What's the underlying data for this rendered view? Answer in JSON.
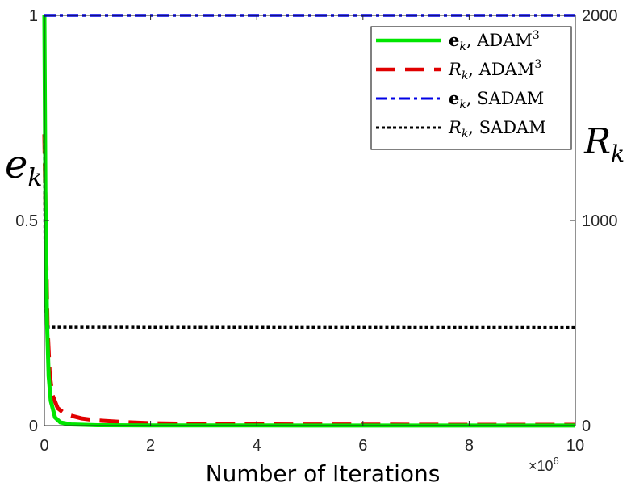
{
  "chart_data": {
    "type": "line",
    "xlabel": "Number of Iterations",
    "x_multiplier": "×10",
    "x_multiplier_exp": "6",
    "xlim": [
      0,
      10
    ],
    "x_ticks": [
      "0",
      "2",
      "4",
      "6",
      "8",
      "10"
    ],
    "ylabel_left": "e",
    "ylabel_left_sub": "k",
    "ylabel_right": "R",
    "ylabel_right_sub": "k",
    "ylim_left": [
      0,
      1
    ],
    "ylim_right": [
      0,
      2000
    ],
    "y_ticks_left": [
      "0",
      "0.5",
      "1"
    ],
    "y_ticks_right": [
      "0",
      "1000",
      "2000"
    ],
    "grid": false,
    "legend_position": "top-right",
    "series": [
      {
        "name": "ek, ADAM3",
        "legend": {
          "sym": "e",
          "sub": "k",
          "alg": "ADAM",
          "sup": "3",
          "bold_sym": true
        },
        "axis": "left",
        "color": "#00e600",
        "style": "solid",
        "x": [
          0,
          0.02,
          0.05,
          0.08,
          0.12,
          0.2,
          0.3,
          0.5,
          1,
          2,
          4,
          6,
          8,
          10
        ],
        "y": [
          1.0,
          0.55,
          0.25,
          0.12,
          0.06,
          0.02,
          0.008,
          0.003,
          0.001,
          0.0005,
          0.0003,
          0.0002,
          0.0002,
          0.0002
        ]
      },
      {
        "name": "Rk, ADAM3",
        "legend": {
          "sym": "R",
          "sub": "k",
          "alg": "ADAM",
          "sup": "3",
          "bold_sym": false
        },
        "axis": "right",
        "color": "#e00000",
        "style": "dashed",
        "x": [
          0,
          0.03,
          0.06,
          0.1,
          0.15,
          0.25,
          0.4,
          0.7,
          1,
          1.5,
          2,
          3,
          4,
          6,
          8,
          10
        ],
        "y": [
          1420,
          900,
          480,
          250,
          150,
          85,
          55,
          35,
          25,
          17,
          12,
          8,
          6,
          5,
          4,
          4
        ]
      },
      {
        "name": "ek, SADAM",
        "legend": {
          "sym": "e",
          "sub": "k",
          "alg": "SADAM",
          "sup": "",
          "bold_sym": true
        },
        "axis": "left",
        "color": "#0000e6",
        "style": "dashdot",
        "x": [
          0,
          10
        ],
        "y": [
          1.0,
          1.0
        ]
      },
      {
        "name": "Rk, SADAM",
        "legend": {
          "sym": "R",
          "sub": "k",
          "alg": "SADAM",
          "sup": "",
          "bold_sym": false
        },
        "axis": "right",
        "color": "#000000",
        "style": "dotted",
        "x": [
          0,
          0.01,
          0.03,
          0.05,
          10
        ],
        "y": [
          1420,
          900,
          600,
          480,
          478
        ]
      }
    ]
  }
}
